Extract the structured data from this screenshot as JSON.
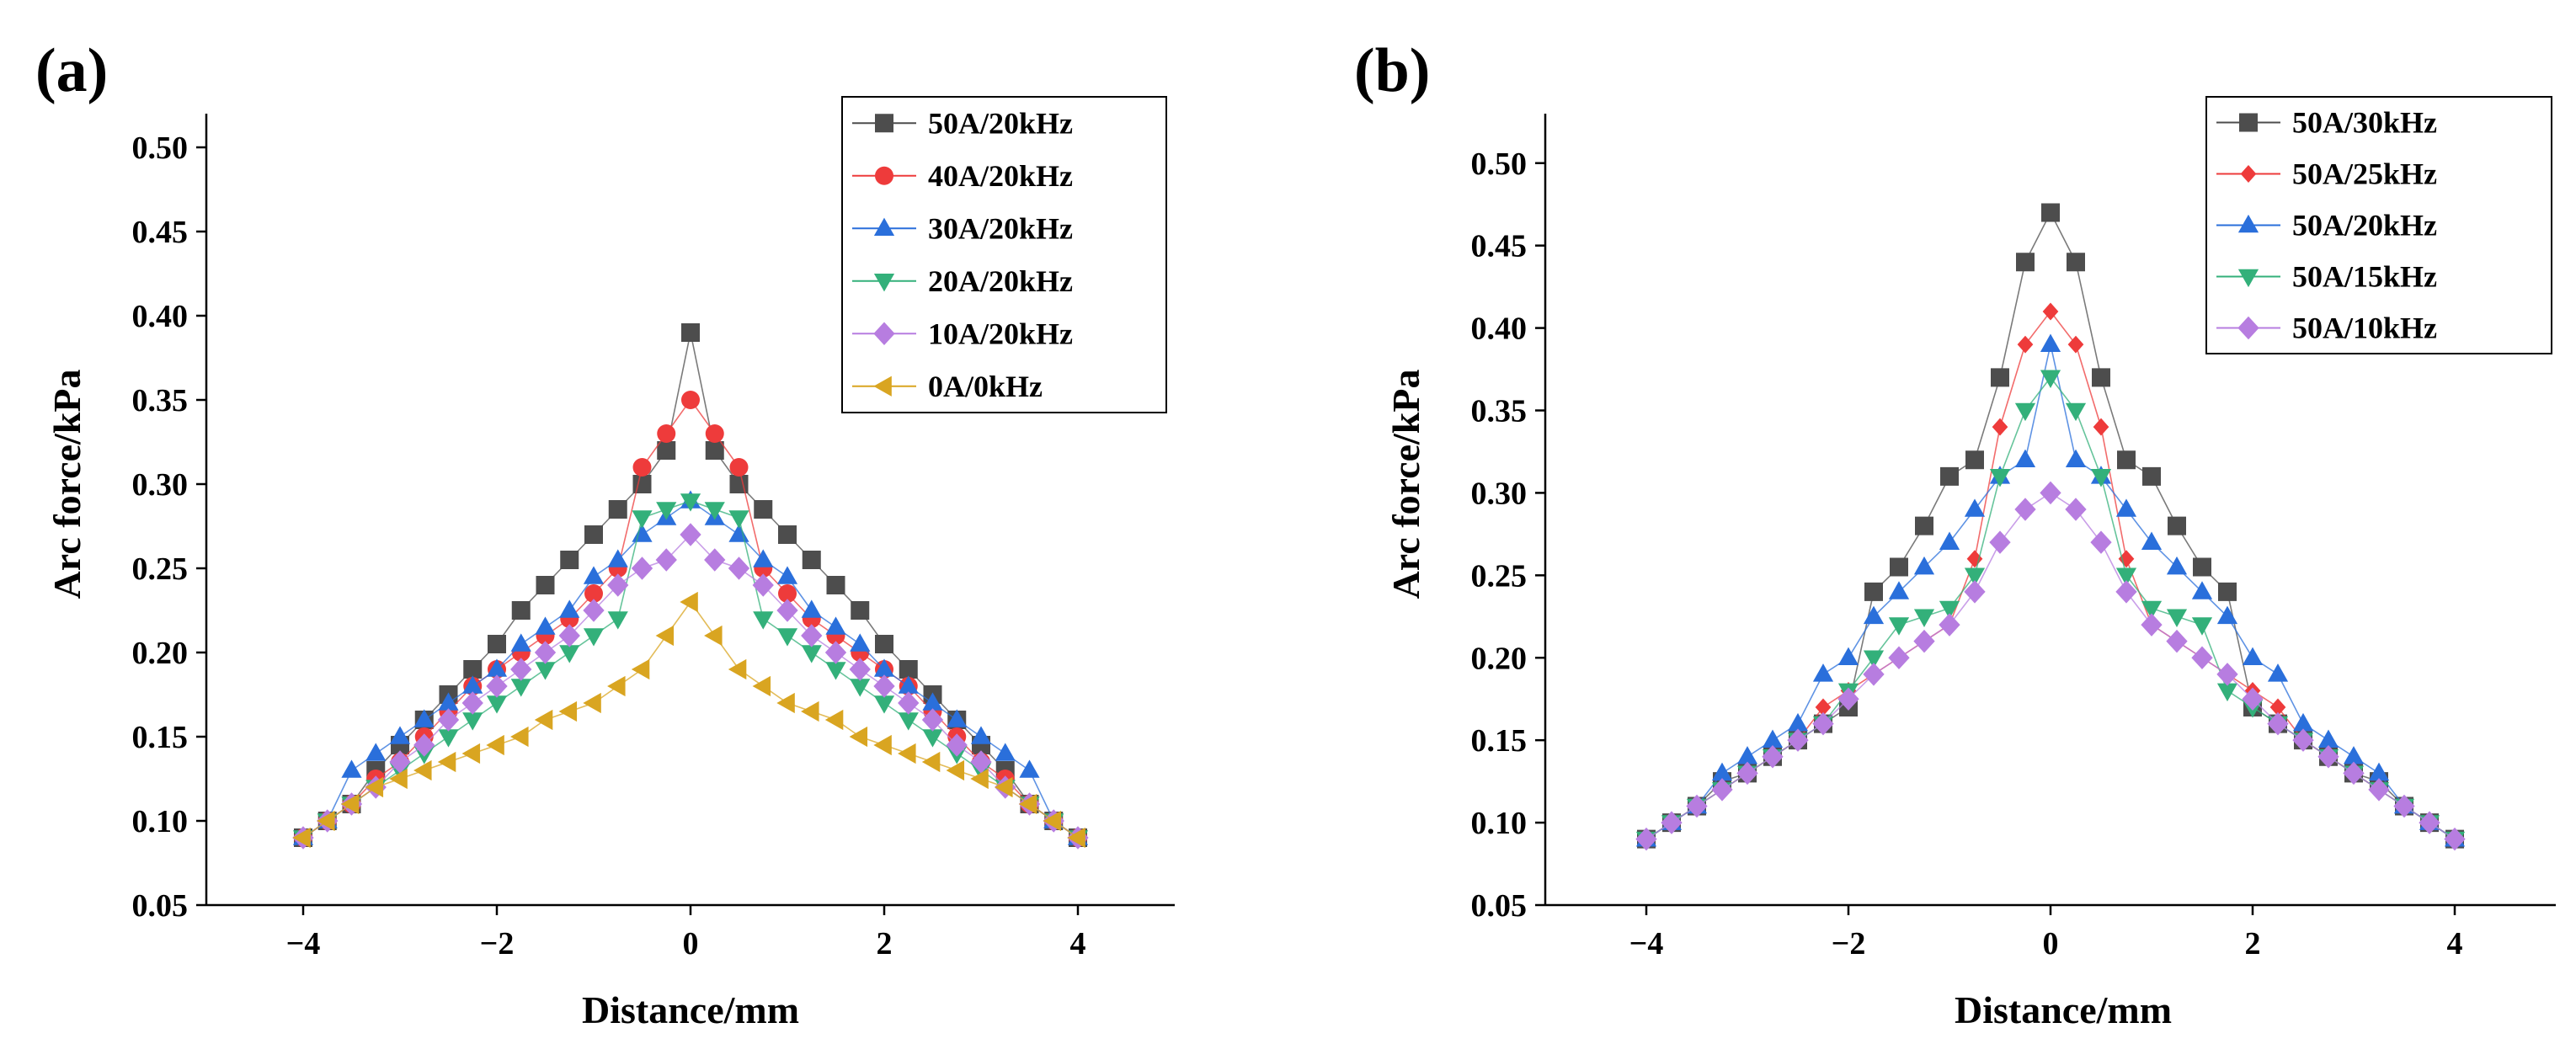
{
  "chart_data": [
    {
      "type": "line",
      "panel_label": "(a)",
      "xlabel": "Distance/mm",
      "ylabel": "Arc force/kPa",
      "xlim": [
        -5,
        5
      ],
      "ylim": [
        0.05,
        0.52
      ],
      "xticks": [
        -4,
        -2,
        0,
        2,
        4
      ],
      "xtick_labels": [
        "−4",
        "−2",
        "0",
        "2",
        "4"
      ],
      "yticks": [
        0.05,
        0.1,
        0.15,
        0.2,
        0.25,
        0.3,
        0.35,
        0.4,
        0.45,
        0.5
      ],
      "ytick_labels": [
        "0.05",
        "0.10",
        "0.15",
        "0.20",
        "0.25",
        "0.30",
        "0.35",
        "0.40",
        "0.45",
        "0.50"
      ],
      "legend_position": "top-right",
      "x": [
        -4,
        -3.75,
        -3.5,
        -3.25,
        -3,
        -2.75,
        -2.5,
        -2.25,
        -2,
        -1.75,
        -1.5,
        -1.25,
        -1,
        -0.75,
        -0.5,
        -0.25,
        0,
        0.25,
        0.5,
        0.75,
        1,
        1.25,
        1.5,
        1.75,
        2,
        2.25,
        2.5,
        2.75,
        3,
        3.25,
        3.5,
        3.75,
        4
      ],
      "series": [
        {
          "name": "50A/20kHz",
          "color": "#4d4d4d",
          "marker": "square",
          "values": [
            0.09,
            0.1,
            0.11,
            0.13,
            0.145,
            0.16,
            0.175,
            0.19,
            0.205,
            0.225,
            0.24,
            0.255,
            0.27,
            0.285,
            0.3,
            0.32,
            0.39,
            0.32,
            0.3,
            0.285,
            0.27,
            0.255,
            0.24,
            0.225,
            0.205,
            0.19,
            0.175,
            0.16,
            0.145,
            0.13,
            0.11,
            0.1,
            0.09
          ]
        },
        {
          "name": "40A/20kHz",
          "color": "#ee3b3b",
          "marker": "circle",
          "values": [
            0.09,
            0.1,
            0.11,
            0.125,
            0.135,
            0.15,
            0.165,
            0.18,
            0.19,
            0.2,
            0.21,
            0.22,
            0.235,
            0.25,
            0.31,
            0.33,
            0.35,
            0.33,
            0.31,
            0.25,
            0.235,
            0.22,
            0.21,
            0.2,
            0.19,
            0.18,
            0.165,
            0.15,
            0.135,
            0.125,
            0.11,
            0.1,
            0.09
          ]
        },
        {
          "name": "30A/20kHz",
          "color": "#2a6fdb",
          "marker": "triangle-up",
          "values": [
            0.09,
            0.1,
            0.13,
            0.14,
            0.15,
            0.16,
            0.17,
            0.18,
            0.19,
            0.205,
            0.215,
            0.225,
            0.245,
            0.255,
            0.27,
            0.28,
            0.29,
            0.28,
            0.27,
            0.255,
            0.245,
            0.225,
            0.215,
            0.205,
            0.19,
            0.18,
            0.17,
            0.16,
            0.15,
            0.14,
            0.13,
            0.1,
            0.09
          ]
        },
        {
          "name": "20A/20kHz",
          "color": "#33b07a",
          "marker": "triangle-down",
          "values": [
            0.09,
            0.1,
            0.11,
            0.12,
            0.13,
            0.14,
            0.15,
            0.16,
            0.17,
            0.18,
            0.19,
            0.2,
            0.21,
            0.22,
            0.28,
            0.285,
            0.29,
            0.285,
            0.28,
            0.22,
            0.21,
            0.2,
            0.19,
            0.18,
            0.17,
            0.16,
            0.15,
            0.14,
            0.13,
            0.12,
            0.11,
            0.1,
            0.09
          ]
        },
        {
          "name": "10A/20kHz",
          "color": "#b77de0",
          "marker": "diamond",
          "values": [
            0.09,
            0.1,
            0.11,
            0.12,
            0.135,
            0.145,
            0.16,
            0.17,
            0.18,
            0.19,
            0.2,
            0.21,
            0.225,
            0.24,
            0.25,
            0.255,
            0.27,
            0.255,
            0.25,
            0.24,
            0.225,
            0.21,
            0.2,
            0.19,
            0.18,
            0.17,
            0.16,
            0.145,
            0.135,
            0.12,
            0.11,
            0.1,
            0.09
          ]
        },
        {
          "name": "0A/0kHz",
          "color": "#d9a521",
          "marker": "triangle-left",
          "values": [
            0.09,
            0.1,
            0.11,
            0.12,
            0.125,
            0.13,
            0.135,
            0.14,
            0.145,
            0.15,
            0.16,
            0.165,
            0.17,
            0.18,
            0.19,
            0.21,
            0.23,
            0.21,
            0.19,
            0.18,
            0.17,
            0.165,
            0.16,
            0.15,
            0.145,
            0.14,
            0.135,
            0.13,
            0.125,
            0.12,
            0.11,
            0.1,
            0.09
          ]
        }
      ]
    },
    {
      "type": "line",
      "panel_label": "(b)",
      "xlabel": "Distance/mm",
      "ylabel": "Arc force/kPa",
      "xlim": [
        -5,
        5
      ],
      "ylim": [
        0.05,
        0.53
      ],
      "xticks": [
        -4,
        -2,
        0,
        2,
        4
      ],
      "xtick_labels": [
        "−4",
        "−2",
        "0",
        "2",
        "4"
      ],
      "yticks": [
        0.05,
        0.1,
        0.15,
        0.2,
        0.25,
        0.3,
        0.35,
        0.4,
        0.45,
        0.5
      ],
      "ytick_labels": [
        "0.05",
        "0.10",
        "0.15",
        "0.20",
        "0.25",
        "0.30",
        "0.35",
        "0.40",
        "0.45",
        "0.50"
      ],
      "legend_position": "top-right",
      "x": [
        -4,
        -3.75,
        -3.5,
        -3.25,
        -3,
        -2.75,
        -2.5,
        -2.25,
        -2,
        -1.75,
        -1.5,
        -1.25,
        -1,
        -0.75,
        -0.5,
        -0.25,
        0,
        0.25,
        0.5,
        0.75,
        1,
        1.25,
        1.5,
        1.75,
        2,
        2.25,
        2.5,
        2.75,
        3,
        3.25,
        3.5,
        3.75,
        4
      ],
      "series": [
        {
          "name": "50A/30kHz",
          "color": "#4d4d4d",
          "marker": "square",
          "values": [
            0.09,
            0.1,
            0.11,
            0.125,
            0.13,
            0.14,
            0.15,
            0.16,
            0.17,
            0.24,
            0.255,
            0.28,
            0.31,
            0.32,
            0.37,
            0.44,
            0.47,
            0.44,
            0.37,
            0.32,
            0.31,
            0.28,
            0.255,
            0.24,
            0.17,
            0.16,
            0.15,
            0.14,
            0.13,
            0.125,
            0.11,
            0.1,
            0.09
          ]
        },
        {
          "name": "50A/25kHz",
          "color": "#ee3b3b",
          "marker": "diamond-small",
          "values": [
            0.09,
            0.1,
            0.11,
            0.12,
            0.13,
            0.14,
            0.15,
            0.17,
            0.18,
            0.19,
            0.2,
            0.21,
            0.22,
            0.26,
            0.34,
            0.39,
            0.41,
            0.39,
            0.34,
            0.26,
            0.22,
            0.21,
            0.2,
            0.19,
            0.18,
            0.17,
            0.15,
            0.14,
            0.13,
            0.12,
            0.11,
            0.1,
            0.09
          ]
        },
        {
          "name": "50A/20kHz",
          "color": "#2a6fdb",
          "marker": "triangle-up",
          "values": [
            0.09,
            0.1,
            0.11,
            0.13,
            0.14,
            0.15,
            0.16,
            0.19,
            0.2,
            0.225,
            0.24,
            0.255,
            0.27,
            0.29,
            0.31,
            0.32,
            0.39,
            0.32,
            0.31,
            0.29,
            0.27,
            0.255,
            0.24,
            0.225,
            0.2,
            0.19,
            0.16,
            0.15,
            0.14,
            0.13,
            0.11,
            0.1,
            0.09
          ]
        },
        {
          "name": "50A/15kHz",
          "color": "#33b07a",
          "marker": "triangle-down",
          "values": [
            0.09,
            0.1,
            0.11,
            0.12,
            0.13,
            0.14,
            0.15,
            0.16,
            0.18,
            0.2,
            0.22,
            0.225,
            0.23,
            0.25,
            0.31,
            0.35,
            0.37,
            0.35,
            0.31,
            0.25,
            0.23,
            0.225,
            0.22,
            0.18,
            0.17,
            0.16,
            0.15,
            0.14,
            0.13,
            0.12,
            0.11,
            0.1,
            0.09
          ]
        },
        {
          "name": "50A/10kHz",
          "color": "#b77de0",
          "marker": "diamond",
          "values": [
            0.09,
            0.1,
            0.11,
            0.12,
            0.13,
            0.14,
            0.15,
            0.16,
            0.175,
            0.19,
            0.2,
            0.21,
            0.22,
            0.24,
            0.27,
            0.29,
            0.3,
            0.29,
            0.27,
            0.24,
            0.22,
            0.21,
            0.2,
            0.19,
            0.175,
            0.16,
            0.15,
            0.14,
            0.13,
            0.12,
            0.11,
            0.1,
            0.09
          ]
        }
      ]
    }
  ]
}
